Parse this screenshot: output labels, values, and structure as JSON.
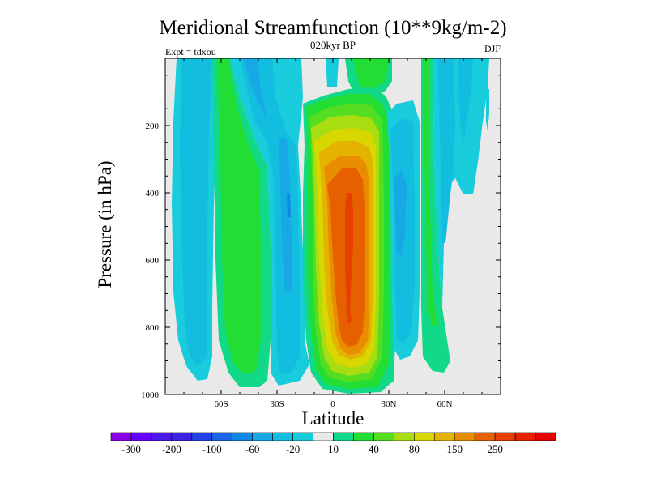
{
  "chart_data": {
    "type": "contour",
    "title": "Meridional Streamfunction (10**9kg/m-2)",
    "subtitle": "020kyr BP",
    "left_annotation": "Expt = tdxou",
    "right_annotation": "DJF",
    "xlabel": "Latitude",
    "ylabel": "Pressure (in hPa)",
    "xlim": [
      -90,
      90
    ],
    "ylim": [
      1000,
      0
    ],
    "x_ticks": [
      {
        "value": -60,
        "label": "60S"
      },
      {
        "value": -30,
        "label": "30S"
      },
      {
        "value": 0,
        "label": "0"
      },
      {
        "value": 30,
        "label": "30N"
      },
      {
        "value": 60,
        "label": "60N"
      }
    ],
    "y_ticks": [
      {
        "value": 200,
        "label": "200"
      },
      {
        "value": 400,
        "label": "400"
      },
      {
        "value": 600,
        "label": "600"
      },
      {
        "value": 800,
        "label": "800"
      },
      {
        "value": 1000,
        "label": "1000"
      }
    ],
    "colorbar": {
      "colors": [
        "#8b00e6",
        "#6600ff",
        "#4b19e6",
        "#3a24e0",
        "#2244e6",
        "#1a66e6",
        "#1089e6",
        "#18a8e6",
        "#12bde0",
        "#19ccdc",
        "#e9e9e9",
        "#11d988",
        "#22dd33",
        "#55dd22",
        "#a8dd11",
        "#d8d800",
        "#e3b300",
        "#e88c00",
        "#e66000",
        "#e64000",
        "#e62000",
        "#e60000"
      ],
      "labels": [
        {
          "edge": 1,
          "text": "-300"
        },
        {
          "edge": 3,
          "text": "-200"
        },
        {
          "edge": 5,
          "text": "-100"
        },
        {
          "edge": 7,
          "text": "-60"
        },
        {
          "edge": 9,
          "text": "-20"
        },
        {
          "edge": 11,
          "text": "10"
        },
        {
          "edge": 13,
          "text": "40"
        },
        {
          "edge": 15,
          "text": "80"
        },
        {
          "edge": 17,
          "text": "150"
        },
        {
          "edge": 19,
          "text": "250"
        }
      ]
    },
    "cells": [
      {
        "name": "sh-polar-cell",
        "lat": -75,
        "p": 450,
        "value": -30
      },
      {
        "name": "sh-ferrel-cell",
        "lat": -53,
        "p": 500,
        "value": 30
      },
      {
        "name": "sh-hadley-cell",
        "lat": -34,
        "p": 450,
        "value": -40
      },
      {
        "name": "nh-hadley-cell",
        "lat": 6,
        "p": 470,
        "value": 280
      },
      {
        "name": "nh-ferrel-cell",
        "lat": 33,
        "p": 420,
        "value": -50
      },
      {
        "name": "nh-polar-cell",
        "lat": 50,
        "p": 500,
        "value": 30
      },
      {
        "name": "nh-polar-cell-2",
        "lat": 66,
        "p": 150,
        "value": -20
      }
    ]
  }
}
